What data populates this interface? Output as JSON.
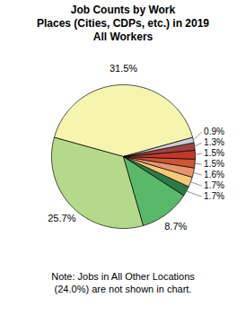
{
  "chart_data": {
    "type": "pie",
    "title": "Job Counts by Work\nPlaces (Cities, CDPs, etc.) in 2019\nAll Workers",
    "values": [
      31.5,
      25.7,
      8.7,
      1.7,
      1.7,
      1.6,
      1.5,
      1.5,
      1.3,
      0.9
    ],
    "value_labels": [
      "31.5%",
      "25.7%",
      "8.7%",
      "1.7%",
      "1.7%",
      "1.6%",
      "1.5%",
      "1.5%",
      "1.3%",
      "0.9%"
    ],
    "colors": [
      "#f5f5b0",
      "#b5d98a",
      "#5ab86b",
      "#2d7a45",
      "#f5c97a",
      "#e8956e",
      "#cc5533",
      "#c0392b",
      "#a04040",
      "#c8cfd8"
    ],
    "data_labels": true,
    "annotations": [
      "Note: Jobs in All Other Locations\n(24.0%) are not shown in chart."
    ]
  }
}
